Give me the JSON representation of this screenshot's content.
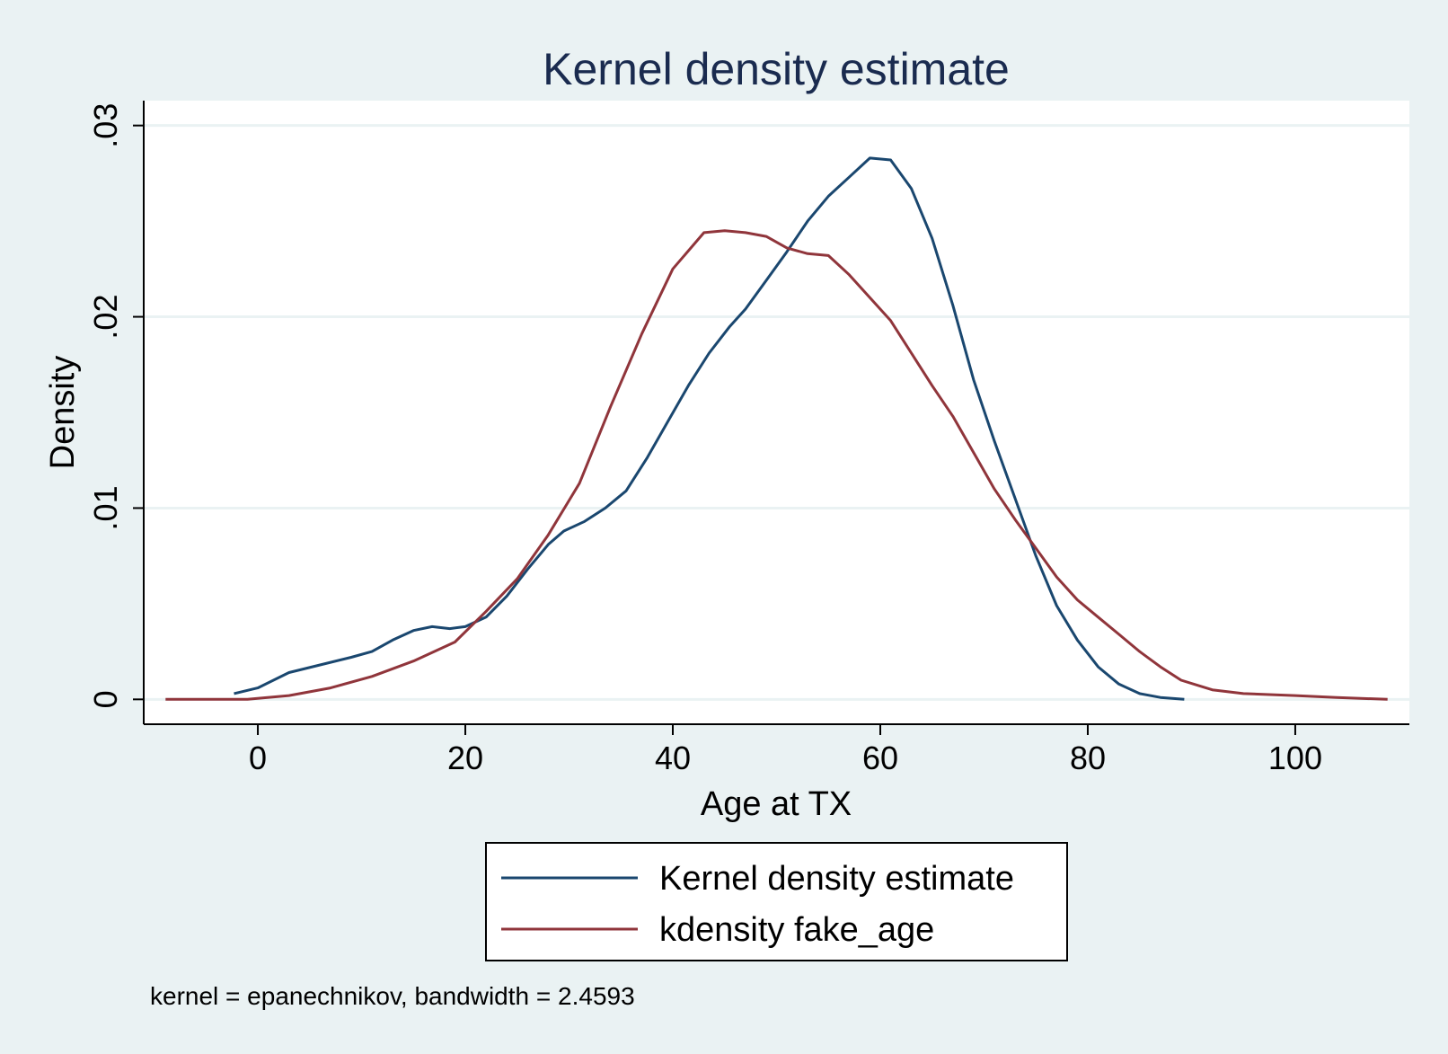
{
  "chart_data": {
    "type": "line",
    "title": "Kernel density estimate",
    "xlabel": "Age at TX",
    "ylabel": "Density",
    "xlim": [
      -11,
      111
    ],
    "ylim": [
      -0.0013,
      0.0313
    ],
    "x_ticks": [
      0,
      20,
      40,
      60,
      80,
      100
    ],
    "x_tick_labels": [
      "0",
      "20",
      "40",
      "60",
      "80",
      "100"
    ],
    "y_ticks": [
      0,
      0.01,
      0.02,
      0.03
    ],
    "y_tick_labels": [
      "0",
      ".01",
      ".02",
      ".03"
    ],
    "grid": "horizontal",
    "legend_position": "bottom",
    "note": "kernel = epanechnikov, bandwidth = 2.4593",
    "series": [
      {
        "name": "Kernel density estimate",
        "color": "#1a476f",
        "x": [
          -2.3,
          0,
          3,
          6,
          9,
          11,
          13,
          15,
          16.8,
          18.5,
          20,
          22,
          24,
          26,
          28,
          29.5,
          31.5,
          33.5,
          35.5,
          37.5,
          39.5,
          41.5,
          43.5,
          45.5,
          47,
          49,
          51,
          53,
          55,
          57,
          59,
          61,
          63,
          65,
          67,
          69,
          71,
          73,
          75,
          77,
          79,
          81,
          83,
          85,
          87,
          89.3
        ],
        "y": [
          0.0003,
          0.0006,
          0.0014,
          0.0018,
          0.0022,
          0.0025,
          0.0031,
          0.0036,
          0.0038,
          0.0037,
          0.0038,
          0.0043,
          0.0054,
          0.0068,
          0.0081,
          0.0088,
          0.0093,
          0.01,
          0.0109,
          0.0126,
          0.0145,
          0.0164,
          0.0181,
          0.0195,
          0.0204,
          0.0219,
          0.0234,
          0.025,
          0.0263,
          0.0273,
          0.0283,
          0.0282,
          0.0267,
          0.0241,
          0.0206,
          0.0167,
          0.0135,
          0.0105,
          0.0075,
          0.0049,
          0.0031,
          0.0017,
          0.0008,
          0.0003,
          0.0001,
          0.0
        ]
      },
      {
        "name": "kdensity fake_age",
        "color": "#90353b",
        "x": [
          -8.9,
          -5,
          -1,
          3,
          7,
          11,
          15,
          19,
          22,
          25,
          28,
          31,
          34,
          37,
          40,
          43,
          45,
          47,
          49,
          51,
          53,
          55,
          57,
          59,
          61,
          63,
          65,
          67,
          69,
          71,
          73,
          75,
          77,
          79,
          81,
          83,
          85,
          87,
          89,
          92,
          95,
          100,
          104,
          108.9
        ],
        "y": [
          0.0,
          0.0,
          0.0,
          0.0002,
          0.0006,
          0.0012,
          0.002,
          0.003,
          0.0046,
          0.0063,
          0.0086,
          0.0113,
          0.0153,
          0.0191,
          0.0225,
          0.0244,
          0.0245,
          0.0244,
          0.0242,
          0.0236,
          0.0233,
          0.0232,
          0.0222,
          0.021,
          0.0198,
          0.0181,
          0.0164,
          0.0148,
          0.0129,
          0.011,
          0.0094,
          0.0079,
          0.0064,
          0.0052,
          0.0043,
          0.0034,
          0.0025,
          0.0017,
          0.001,
          0.0005,
          0.0003,
          0.0002,
          0.0001,
          0.0
        ]
      }
    ]
  }
}
